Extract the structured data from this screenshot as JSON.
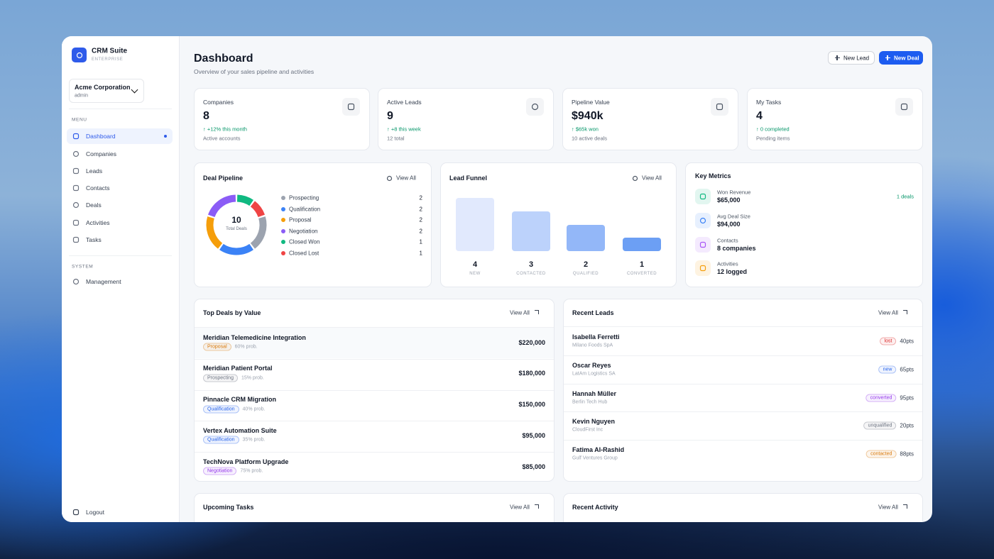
{
  "sidebar": {
    "brand": "CRM Suite",
    "edition": "ENTERPRISE",
    "org": "Acme Corporation",
    "role": "admin",
    "menu_label": "MENU",
    "menu": [
      "Dashboard",
      "Companies",
      "Leads",
      "Contacts",
      "Deals",
      "Activities",
      "Tasks"
    ],
    "system_label": "SYSTEM",
    "system": [
      "Management"
    ],
    "logout": "Logout"
  },
  "header": {
    "title": "Dashboard",
    "subtitle": "Overview of your sales pipeline and activities",
    "buttons": [
      "New Lead",
      "New Deal"
    ]
  },
  "stats": [
    {
      "label": "Companies",
      "value": "8",
      "change": "↑ +12% this month",
      "note": "Active accounts"
    },
    {
      "label": "Active Leads",
      "value": "9",
      "change": "↑ +8 this week",
      "note": "12 total"
    },
    {
      "label": "Pipeline Value",
      "value": "$940k",
      "change": "↑ $65k won",
      "note": "10 active deals"
    },
    {
      "label": "My Tasks",
      "value": "4",
      "change": "↑ 0 completed",
      "note": "Pending items"
    }
  ],
  "pipeline": {
    "title": "Deal Pipeline",
    "action": "View All",
    "total": 10,
    "total_label": "Total Deals",
    "stages": [
      {
        "name": "Prospecting",
        "count": 2,
        "color": "#9ca3af"
      },
      {
        "name": "Qualification",
        "count": 2,
        "color": "#3b82f6"
      },
      {
        "name": "Proposal",
        "count": 2,
        "color": "#f59e0b"
      },
      {
        "name": "Negotiation",
        "count": 2,
        "color": "#8b5cf6"
      },
      {
        "name": "Closed Won",
        "count": 1,
        "color": "#10b981"
      },
      {
        "name": "Closed Lost",
        "count": 1,
        "color": "#ef4444"
      }
    ]
  },
  "funnel": {
    "title": "Lead Funnel",
    "action": "View All",
    "stages": [
      {
        "label": "NEW",
        "count": 4,
        "color": "#e1e9fd"
      },
      {
        "label": "CONTACTED",
        "count": 3,
        "color": "#bcd2fb"
      },
      {
        "label": "QUALIFIED",
        "count": 2,
        "color": "#93b7f8"
      },
      {
        "label": "CONVERTED",
        "count": 1,
        "color": "#6c9ff4"
      }
    ]
  },
  "metrics": {
    "title": "Key Metrics",
    "items": [
      {
        "label": "Won Revenue",
        "value": "$65,000",
        "extra": "1 deals",
        "color": "#10b981"
      },
      {
        "label": "Avg Deal Size",
        "value": "$94,000",
        "color": "#3b82f6"
      },
      {
        "label": "Contacts",
        "value": "8 companies",
        "color": "#a855f7"
      },
      {
        "label": "Activities",
        "value": "12 logged",
        "color": "#f59e0b"
      }
    ]
  },
  "top_deals": {
    "title": "Top Deals by Value",
    "action": "View All",
    "rows": [
      {
        "name": "Meridian Telemedicine Integration",
        "stage": "Proposal",
        "prob": "60% prob.",
        "value": "$220,000",
        "color": "#d97706"
      },
      {
        "name": "Meridian Patient Portal",
        "stage": "Prospecting",
        "prob": "15% prob.",
        "value": "$180,000",
        "color": "#6b7280"
      },
      {
        "name": "Pinnacle CRM Migration",
        "stage": "Qualification",
        "prob": "40% prob.",
        "value": "$150,000",
        "color": "#2563eb"
      },
      {
        "name": "Vertex Automation Suite",
        "stage": "Qualification",
        "prob": "35% prob.",
        "value": "$95,000",
        "color": "#2563eb"
      },
      {
        "name": "TechNova Platform Upgrade",
        "stage": "Negotiation",
        "prob": "75% prob.",
        "value": "$85,000",
        "color": "#9333ea"
      }
    ]
  },
  "recent_leads": {
    "title": "Recent Leads",
    "action": "View All",
    "rows": [
      {
        "name": "Isabella Ferretti",
        "company": "Milano Foods SpA",
        "status": "lost",
        "score": "40pts",
        "color": "#dc2626"
      },
      {
        "name": "Oscar Reyes",
        "company": "LatAm Logistics SA",
        "status": "new",
        "score": "65pts",
        "color": "#2563eb"
      },
      {
        "name": "Hannah Müller",
        "company": "Berlin Tech Hub",
        "status": "converted",
        "score": "95pts",
        "color": "#9333ea"
      },
      {
        "name": "Kevin Nguyen",
        "company": "CloudFirst Inc",
        "status": "unqualified",
        "score": "20pts",
        "color": "#6b7280"
      },
      {
        "name": "Fatima Al-Rashid",
        "company": "Gulf Ventures Group",
        "status": "contacted",
        "score": "88pts",
        "color": "#d97706"
      }
    ]
  },
  "upcoming_tasks": {
    "title": "Upcoming Tasks",
    "action": "View All"
  },
  "recent_activity": {
    "title": "Recent Activity",
    "action": "View All"
  }
}
